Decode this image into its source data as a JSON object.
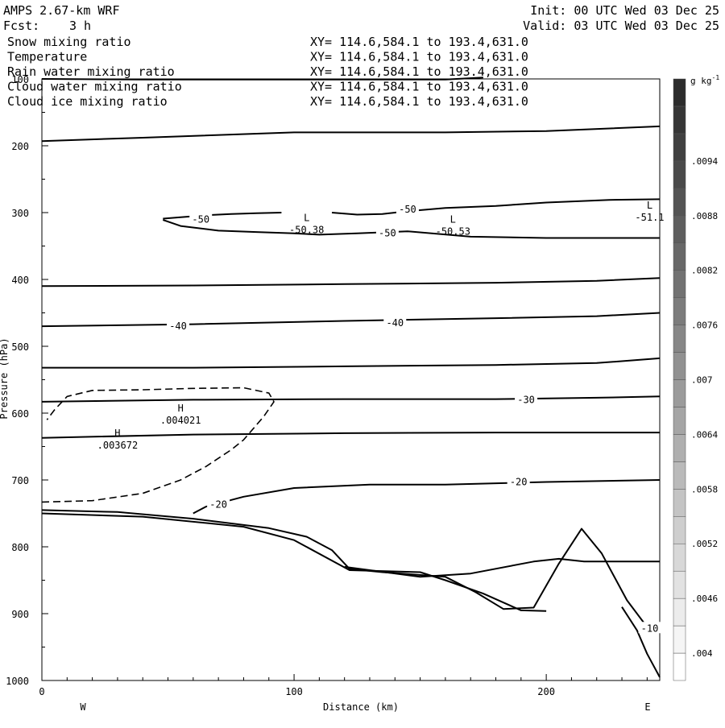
{
  "header": {
    "model": "AMPS 2.67-km WRF",
    "init": "Init: 00 UTC Wed 03 Dec 25",
    "fcst_label": "Fcst:",
    "fcst_value": "3 h",
    "valid": "Valid: 03 UTC Wed 03 Dec 25"
  },
  "fields": [
    {
      "name": "Snow mixing ratio",
      "xy": "XY= 114.6,584.1 to 193.4,631.0",
      "color": "#000000"
    },
    {
      "name": "Temperature",
      "xy": "XY= 114.6,584.1 to 193.4,631.0",
      "color": "#000000"
    },
    {
      "name": "Rain water mixing ratio",
      "xy": "XY= 114.6,584.1 to 193.4,631.0",
      "color": "#e01010"
    },
    {
      "name": "Cloud water mixing ratio",
      "xy": "XY= 114.6,584.1 to 193.4,631.0",
      "color": "#1010c0"
    },
    {
      "name": "Cloud ice mixing ratio",
      "xy": "XY= 114.6,584.1 to 193.4,631.0",
      "color": "#000000"
    }
  ],
  "chart_data": {
    "type": "contour-cross-section",
    "xlabel": "Distance (km)",
    "ylabel": "Pressure (hPa)",
    "xlim": [
      0,
      245
    ],
    "ylim": [
      1000,
      100
    ],
    "x_ticks": [
      0,
      100,
      200
    ],
    "y_ticks": [
      100,
      200,
      300,
      400,
      500,
      600,
      700,
      800,
      900,
      1000
    ],
    "direction_left": "W",
    "direction_right": "E",
    "colorbar": {
      "unit": "g kg",
      "unit_exp": "-1",
      "labels": [
        ".004",
        ".0046",
        ".0052",
        ".0058",
        ".0064",
        ".007",
        ".0076",
        ".0082",
        ".0088",
        ".0094"
      ],
      "bands": [
        "#ffffff",
        "#f5f5f5",
        "#ececec",
        "#e2e2e2",
        "#d8d8d8",
        "#cecece",
        "#c4c4c4",
        "#bababa",
        "#afafaf",
        "#a5a5a5",
        "#9b9b9b",
        "#919191",
        "#878787",
        "#7c7c7c",
        "#727272",
        "#686868",
        "#5e5e5e",
        "#545454",
        "#4a4a4a",
        "#404040",
        "#363636",
        "#2c2c2c"
      ]
    },
    "temperature_contours": [
      {
        "id": "t-100",
        "points": [
          [
            0,
            100
          ],
          [
            40,
            101
          ],
          [
            100,
            101
          ],
          [
            160,
            101
          ],
          [
            175,
            98
          ]
        ]
      },
      {
        "id": "t-200",
        "points": [
          [
            0,
            193
          ],
          [
            40,
            188
          ],
          [
            100,
            180
          ],
          [
            160,
            180
          ],
          [
            200,
            178
          ],
          [
            245,
            171
          ]
        ]
      },
      {
        "id": "t-50-a",
        "points": [
          [
            48,
            309
          ],
          [
            55,
            307
          ],
          [
            65,
            304
          ],
          [
            75,
            302
          ],
          [
            85,
            301
          ],
          [
            95,
            300
          ]
        ]
      },
      {
        "id": "t-50-b",
        "points": [
          [
            48,
            311
          ],
          [
            55,
            320
          ],
          [
            70,
            327
          ],
          [
            85,
            329
          ],
          [
            100,
            331
          ],
          [
            110,
            333
          ],
          [
            125,
            331
          ],
          [
            145,
            328
          ],
          [
            170,
            336
          ],
          [
            200,
            338
          ],
          [
            245,
            338
          ]
        ]
      },
      {
        "id": "t-50-c",
        "points": [
          [
            115,
            300
          ],
          [
            125,
            303
          ],
          [
            135,
            302
          ],
          [
            145,
            298
          ],
          [
            160,
            293
          ],
          [
            180,
            290
          ],
          [
            200,
            285
          ],
          [
            225,
            281
          ],
          [
            245,
            280
          ]
        ]
      },
      {
        "id": "t-40-a",
        "points": [
          [
            0,
            410
          ],
          [
            60,
            409
          ],
          [
            120,
            407
          ],
          [
            180,
            405
          ],
          [
            220,
            402
          ],
          [
            245,
            398
          ]
        ]
      },
      {
        "id": "t-40-b",
        "points": [
          [
            0,
            470
          ],
          [
            60,
            467
          ],
          [
            120,
            462
          ],
          [
            180,
            458
          ],
          [
            220,
            455
          ],
          [
            245,
            450
          ]
        ]
      },
      {
        "id": "t-30-a",
        "points": [
          [
            0,
            532
          ],
          [
            60,
            532
          ],
          [
            120,
            530
          ],
          [
            180,
            528
          ],
          [
            220,
            525
          ],
          [
            245,
            518
          ]
        ]
      },
      {
        "id": "t-30-b",
        "points": [
          [
            0,
            583
          ],
          [
            60,
            580
          ],
          [
            120,
            579
          ],
          [
            180,
            579
          ],
          [
            220,
            577
          ],
          [
            245,
            575
          ]
        ]
      },
      {
        "id": "t-30-c",
        "points": [
          [
            0,
            637
          ],
          [
            60,
            632
          ],
          [
            120,
            630
          ],
          [
            180,
            629
          ],
          [
            220,
            629
          ],
          [
            245,
            629
          ]
        ]
      },
      {
        "id": "t-20",
        "points": [
          [
            60,
            750
          ],
          [
            65,
            740
          ],
          [
            80,
            725
          ],
          [
            100,
            712
          ],
          [
            130,
            707
          ],
          [
            160,
            707
          ],
          [
            200,
            703
          ],
          [
            245,
            700
          ]
        ]
      },
      {
        "id": "t-10",
        "points": [
          [
            120,
            830
          ],
          [
            150,
            845
          ],
          [
            170,
            840
          ],
          [
            195,
            822
          ],
          [
            205,
            818
          ],
          [
            215,
            822
          ],
          [
            230,
            822
          ],
          [
            245,
            822
          ]
        ]
      },
      {
        "id": "terrain",
        "points": [
          [
            0,
            745
          ],
          [
            30,
            748
          ],
          [
            60,
            758
          ],
          [
            90,
            772
          ],
          [
            105,
            785
          ],
          [
            115,
            805
          ],
          [
            122,
            833
          ],
          [
            135,
            838
          ],
          [
            160,
            845
          ],
          [
            172,
            868
          ],
          [
            183,
            893
          ],
          [
            195,
            891
          ],
          [
            205,
            825
          ],
          [
            214,
            773
          ],
          [
            222,
            810
          ],
          [
            232,
            880
          ],
          [
            240,
            920
          ],
          [
            245,
            925
          ]
        ]
      },
      {
        "id": "t-terrain-2",
        "points": [
          [
            0,
            750
          ],
          [
            40,
            755
          ],
          [
            80,
            770
          ],
          [
            100,
            790
          ],
          [
            122,
            835
          ],
          [
            150,
            838
          ],
          [
            160,
            850
          ],
          [
            175,
            870
          ],
          [
            190,
            895
          ],
          [
            200,
            896
          ]
        ]
      },
      {
        "id": "t-right",
        "points": [
          [
            230,
            890
          ],
          [
            236,
            925
          ],
          [
            240,
            960
          ],
          [
            245,
            995
          ]
        ]
      }
    ],
    "snow_contours": [
      {
        "id": "snow-0004",
        "points": [
          [
            0,
            733
          ],
          [
            20,
            731
          ],
          [
            40,
            720
          ],
          [
            55,
            700
          ],
          [
            65,
            680
          ],
          [
            75,
            655
          ],
          [
            80,
            640
          ],
          [
            88,
            605
          ],
          [
            92,
            583
          ],
          [
            90,
            570
          ],
          [
            80,
            562
          ],
          [
            60,
            563
          ],
          [
            40,
            565
          ],
          [
            20,
            566
          ],
          [
            10,
            575
          ],
          [
            5,
            595
          ],
          [
            2,
            610
          ]
        ]
      }
    ],
    "contour_labels": [
      {
        "text": "-50",
        "x": 63,
        "y": 310
      },
      {
        "text": "-50",
        "x": 145,
        "y": 295
      },
      {
        "text": "-50",
        "x": 137,
        "y": 331
      },
      {
        "text": "-40",
        "x": 54,
        "y": 470
      },
      {
        "text": "-40",
        "x": 140,
        "y": 465
      },
      {
        "text": "-30",
        "x": 192,
        "y": 580
      },
      {
        "text": "-20",
        "x": 70,
        "y": 737
      },
      {
        "text": "-20",
        "x": 189,
        "y": 703
      },
      {
        "text": "-10",
        "x": 241,
        "y": 922
      }
    ],
    "extrema": [
      {
        "type": "L",
        "value": "-50.38",
        "x": 105,
        "y": 320
      },
      {
        "type": "L",
        "value": "-50.53",
        "x": 163,
        "y": 322
      },
      {
        "type": "L",
        "value": "-51.1",
        "x": 241,
        "y": 301
      },
      {
        "type": "H",
        "value": ".004021",
        "x": 55,
        "y": 605
      },
      {
        "type": "H",
        "value": ".003672",
        "x": 30,
        "y": 642
      }
    ]
  }
}
